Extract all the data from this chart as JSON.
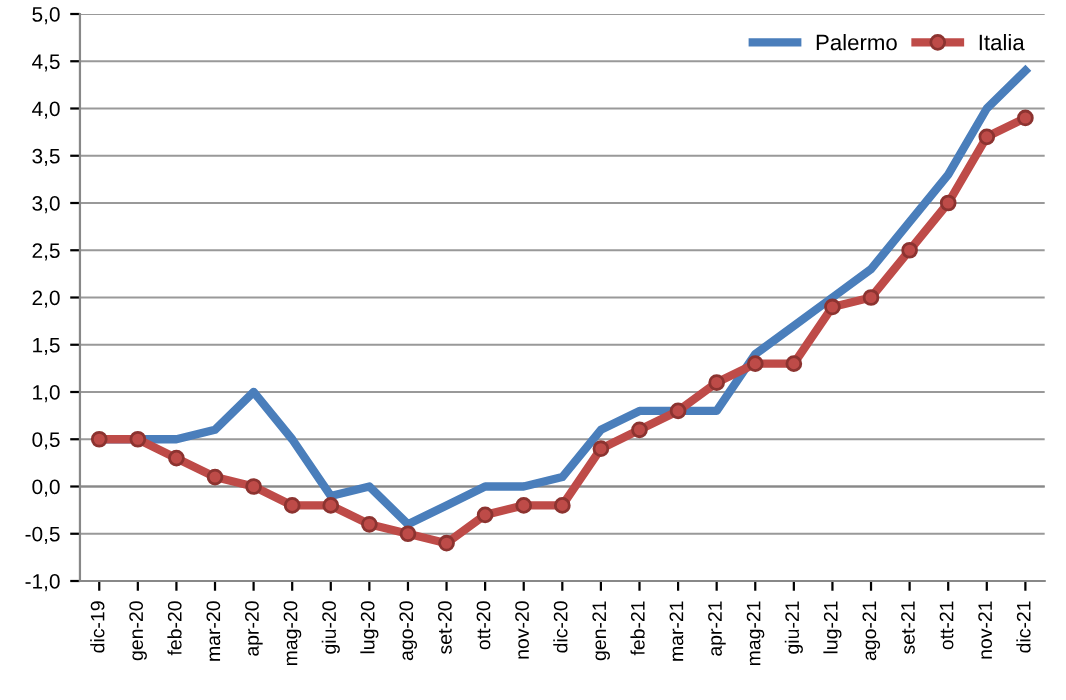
{
  "chart_data": {
    "type": "line",
    "categories": [
      "dic-19",
      "gen-20",
      "feb-20",
      "mar-20",
      "apr-20",
      "mag-20",
      "giu-20",
      "lug-20",
      "ago-20",
      "set-20",
      "ott-20",
      "nov-20",
      "dic-20",
      "gen-21",
      "feb-21",
      "mar-21",
      "apr-21",
      "mag-21",
      "giu-21",
      "lug-21",
      "ago-21",
      "set-21",
      "ott-21",
      "nov-21",
      "dic-21"
    ],
    "series": [
      {
        "name": "Palermo",
        "color": "#4a7ebb",
        "marker": "none",
        "values": [
          0.5,
          0.5,
          0.5,
          0.6,
          1.0,
          0.5,
          -0.1,
          0.0,
          -0.4,
          -0.2,
          0.0,
          0.0,
          0.1,
          0.6,
          0.8,
          0.8,
          0.8,
          1.4,
          1.7,
          2.0,
          2.3,
          2.8,
          3.3,
          4.0,
          4.4
        ]
      },
      {
        "name": "Italia",
        "color": "#be4b48",
        "marker": "circle",
        "values": [
          0.5,
          0.5,
          0.3,
          0.1,
          0.0,
          -0.2,
          -0.2,
          -0.4,
          -0.5,
          -0.6,
          -0.3,
          -0.2,
          -0.2,
          0.4,
          0.6,
          0.8,
          1.1,
          1.3,
          1.3,
          1.9,
          2.0,
          2.5,
          3.0,
          3.7,
          3.9
        ]
      }
    ],
    "ylim": [
      -1.0,
      5.0
    ],
    "yticks": [
      {
        "value": -1.0,
        "label": "-1,0"
      },
      {
        "value": -0.5,
        "label": "-0,5"
      },
      {
        "value": 0.0,
        "label": "0,0"
      },
      {
        "value": 0.5,
        "label": "0,5"
      },
      {
        "value": 1.0,
        "label": "1,0"
      },
      {
        "value": 1.5,
        "label": "1,5"
      },
      {
        "value": 2.0,
        "label": "2,0"
      },
      {
        "value": 2.5,
        "label": "2,5"
      },
      {
        "value": 3.0,
        "label": "3,0"
      },
      {
        "value": 3.5,
        "label": "3,5"
      },
      {
        "value": 4.0,
        "label": "4,0"
      },
      {
        "value": 4.5,
        "label": "4,5"
      },
      {
        "value": 5.0,
        "label": "5,0"
      }
    ],
    "grid": "y",
    "legend": "top right",
    "line_style": "solid"
  }
}
